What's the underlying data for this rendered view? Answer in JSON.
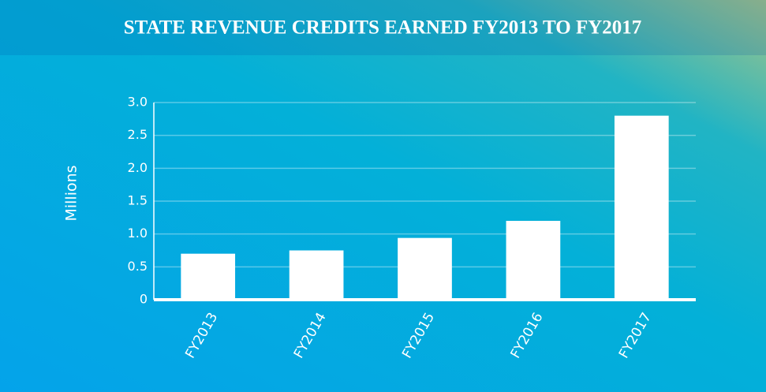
{
  "chart_data": {
    "type": "bar",
    "title": "STATE REVENUE CREDITS EARNED FY2013 TO FY2017",
    "y_label": "Millions",
    "categories": [
      "FY2013",
      "FY2014",
      "FY2015",
      "FY2016",
      "FY2017"
    ],
    "values": [
      0.7,
      0.75,
      0.94,
      1.2,
      2.8
    ],
    "color": "#ffffff",
    "ylim": [
      0,
      3
    ],
    "yticks": [
      0,
      0.5,
      {
        "value": 1,
        "label": "1.0"
      },
      1.5,
      {
        "value": 2,
        "label": "2.0"
      },
      2.5,
      {
        "value": 3,
        "label": "3.0"
      }
    ],
    "grid": true
  }
}
